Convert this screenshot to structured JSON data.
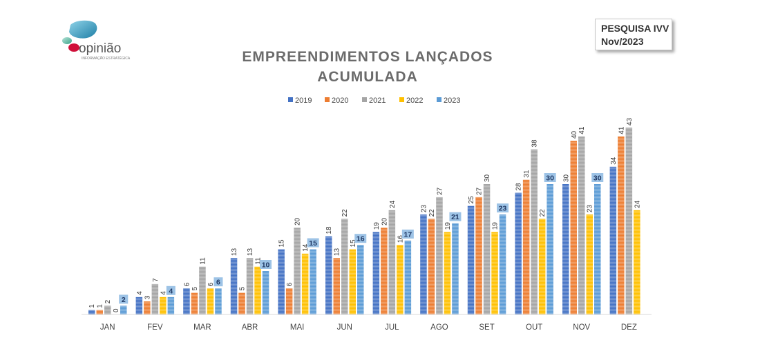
{
  "logo": {
    "brand": "opinião",
    "tagline": "INFORMAÇÃO ESTRATÉGICA"
  },
  "badge": {
    "line1": "PESQUISA IVV",
    "line2": "Nov/2023"
  },
  "chart_data": {
    "type": "bar",
    "title_line1": "EMPREENDIMENTOS LANÇADOS",
    "title_line2": "ACUMULADA",
    "categories": [
      "JAN",
      "FEV",
      "MAR",
      "ABR",
      "MAI",
      "JUN",
      "JUL",
      "AGO",
      "SET",
      "OUT",
      "NOV",
      "DEZ"
    ],
    "series": [
      {
        "name": "2019",
        "color": "#4472c4",
        "values": [
          1,
          4,
          6,
          13,
          15,
          18,
          19,
          23,
          25,
          28,
          30,
          34
        ]
      },
      {
        "name": "2020",
        "color": "#ed7d31",
        "values": [
          1,
          3,
          5,
          5,
          6,
          13,
          20,
          22,
          27,
          31,
          40,
          41
        ]
      },
      {
        "name": "2021",
        "color": "#a5a5a5",
        "values": [
          2,
          7,
          11,
          13,
          20,
          22,
          24,
          27,
          30,
          38,
          41,
          43
        ]
      },
      {
        "name": "2022",
        "color": "#ffc000",
        "values": [
          0,
          4,
          6,
          11,
          14,
          15,
          16,
          19,
          19,
          22,
          23,
          24
        ]
      },
      {
        "name": "2023",
        "color": "#5b9bd5",
        "values": [
          2,
          4,
          6,
          10,
          15,
          16,
          17,
          21,
          23,
          30,
          30,
          null
        ]
      }
    ],
    "ylim": [
      0,
      45
    ],
    "legend_position": "top",
    "grid": false
  }
}
